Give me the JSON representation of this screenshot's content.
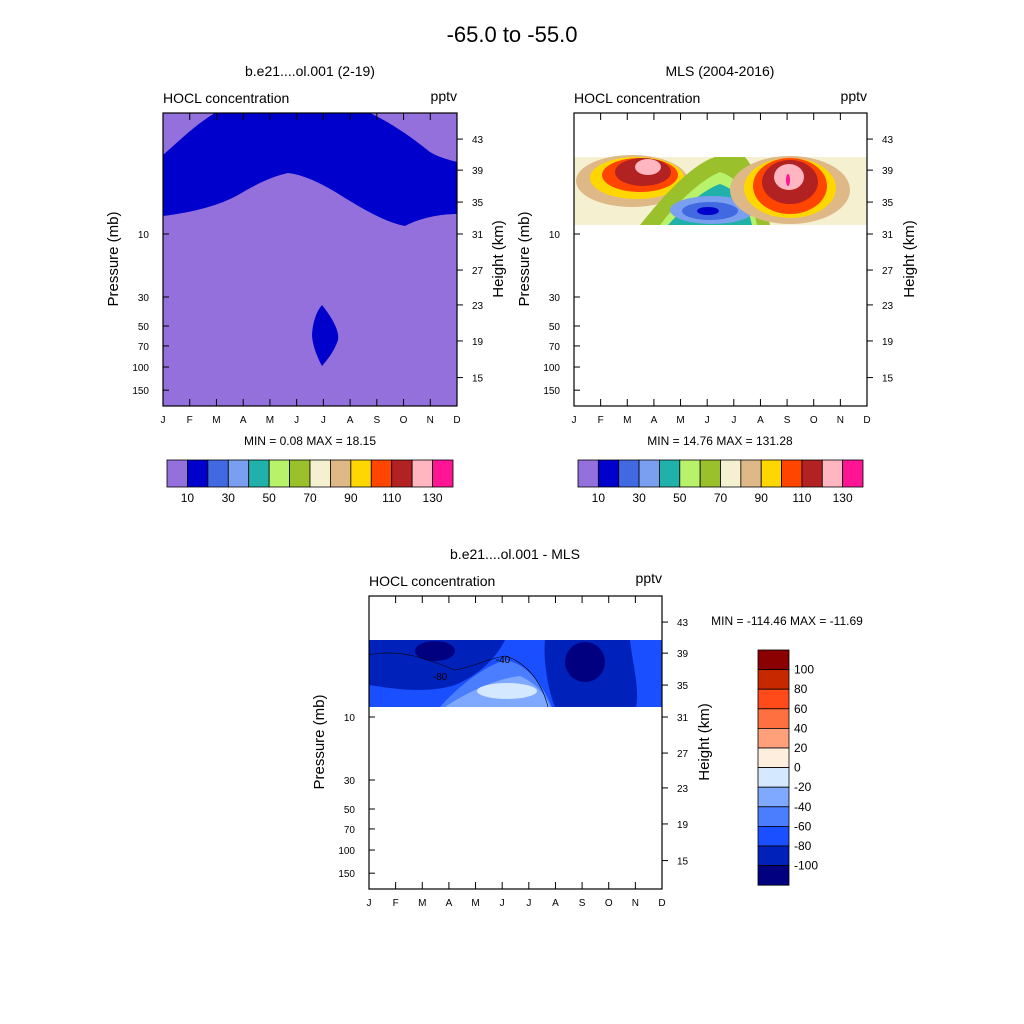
{
  "title": "-65.0 to -55.0",
  "months": [
    "J",
    "F",
    "M",
    "A",
    "M",
    "J",
    "J",
    "A",
    "S",
    "O",
    "N",
    "D"
  ],
  "pressure_ticks": [
    "10",
    "30",
    "50",
    "70",
    "100",
    "150"
  ],
  "height_ticks": [
    "43",
    "39",
    "35",
    "31",
    "27",
    "23",
    "19",
    "15"
  ],
  "colors": {
    "model_bg": "#9370db",
    "model_band": "#0000cd",
    "mls_ramp": [
      "#9370db",
      "#0000cd",
      "#4169e1",
      "#7b9ff0",
      "#20b2aa",
      "#b8f16a",
      "#9ac12c",
      "#f5f0d0",
      "#deb887",
      "#ffd700",
      "#ff4500",
      "#b22222",
      "#ffb6c1",
      "#ff1493"
    ],
    "diff_ramp": [
      "#000080",
      "#0022bb",
      "#1a4fff",
      "#4a7eff",
      "#7fa8ff",
      "#d4e8ff",
      "#fdeede",
      "#ffa07a",
      "#ff7040",
      "#ff4a1a",
      "#c82800",
      "#8b0000"
    ]
  },
  "chart_data": [
    {
      "type": "heatmap",
      "title": "b.e21....ol.001 (2-19)",
      "left_label": "HOCL concentration",
      "right_label": "pptv",
      "ylabel": "Pressure (mb)",
      "ylabel_right": "Height (km)",
      "stats": "MIN =   0.08  MAX =  18.15",
      "colorbar_labels": [
        "10",
        "30",
        "50",
        "70",
        "90",
        "110",
        "130"
      ]
    },
    {
      "type": "heatmap",
      "title": "MLS (2004-2016)",
      "left_label": "HOCL concentration",
      "right_label": "pptv",
      "ylabel": "Pressure (mb)",
      "ylabel_right": "Height (km)",
      "stats": "MIN =  14.76  MAX = 131.28",
      "colorbar_labels": [
        "10",
        "30",
        "50",
        "70",
        "90",
        "110",
        "130"
      ]
    },
    {
      "type": "heatmap",
      "title": "b.e21....ol.001 - MLS",
      "left_label": "HOCL concentration",
      "right_label": "pptv",
      "ylabel": "Pressure (mb)",
      "ylabel_right": "Height (km)",
      "stats": "MIN = -114.46  MAX = -11.69",
      "contour_labels": [
        "-40",
        "-80"
      ],
      "colorbar_labels": [
        "100",
        "80",
        "60",
        "40",
        "20",
        "0",
        "-20",
        "-40",
        "-60",
        "-80",
        "-100"
      ]
    }
  ]
}
